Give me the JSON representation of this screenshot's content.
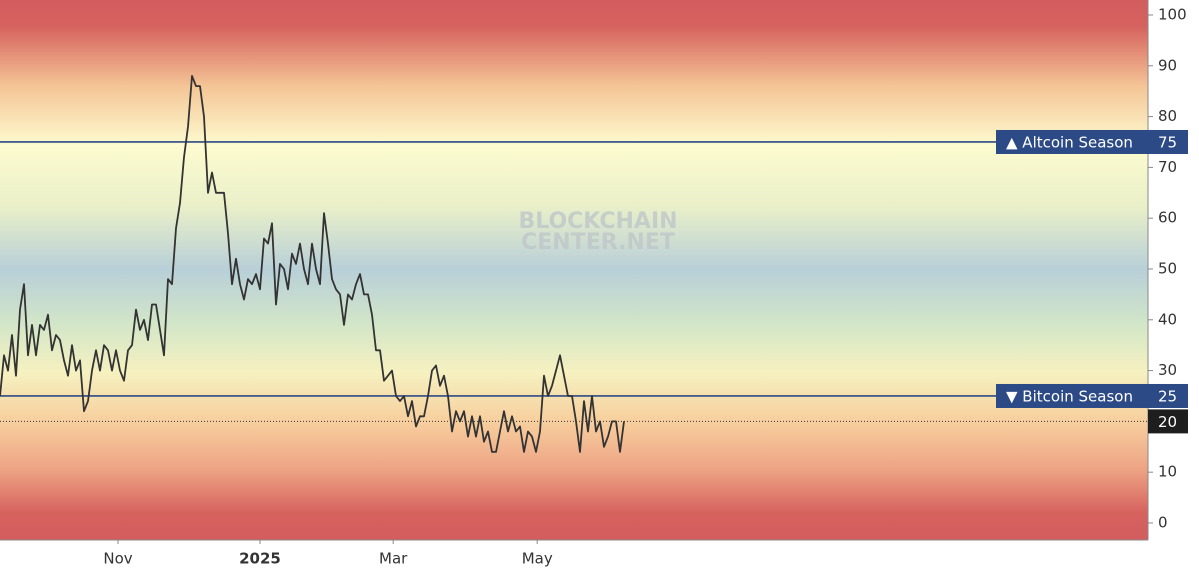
{
  "chart_data": {
    "type": "line",
    "watermark": [
      "BLOCKCHAIN",
      "CENTER.NET"
    ],
    "values": [
      25,
      33,
      30,
      37,
      29,
      42,
      47,
      33,
      39,
      33,
      39,
      38,
      41,
      34,
      37,
      36,
      32,
      29,
      35,
      30,
      32,
      22,
      24,
      30,
      34,
      30,
      35,
      34,
      30,
      34,
      30,
      28,
      34,
      35,
      42,
      38,
      40,
      36,
      43,
      43,
      38,
      33,
      48,
      47,
      58,
      63,
      72,
      78,
      88,
      86,
      86,
      80,
      65,
      69,
      65,
      65,
      65,
      57,
      47,
      52,
      47,
      44,
      48,
      47,
      49,
      46,
      56,
      55,
      59,
      43,
      51,
      50,
      46,
      53,
      51,
      55,
      50,
      47,
      55,
      50,
      47,
      61,
      55,
      48,
      46,
      45,
      39,
      45,
      44,
      47,
      49,
      45,
      45,
      41,
      34,
      34,
      28,
      29,
      30,
      25,
      24,
      25,
      21,
      24,
      19,
      21,
      21,
      25,
      30,
      31,
      27,
      29,
      25,
      18,
      22,
      20,
      22,
      17,
      21,
      17,
      21,
      16,
      18,
      14,
      14,
      18,
      22,
      18,
      21,
      18,
      19,
      14,
      18,
      17,
      14,
      18,
      29,
      25,
      27,
      30,
      33,
      29,
      25,
      25,
      20,
      14,
      24,
      18,
      25,
      18,
      20,
      15,
      17,
      20,
      20,
      14,
      20
    ],
    "color": "#333333",
    "xlim": [
      0,
      287
    ],
    "xticks": [
      {
        "value": 29.5,
        "label": "Nov"
      },
      {
        "value": 65,
        "label": "2025"
      },
      {
        "value": 98.3,
        "label": "Mar"
      },
      {
        "value": 134.3,
        "label": "May"
      }
    ],
    "ylim": [
      -3.35,
      102.95
    ],
    "yticks": [
      0,
      10,
      20,
      30,
      40,
      50,
      60,
      70,
      80,
      90,
      100
    ],
    "thresholds": [
      {
        "label": "▲ Altcoin Season",
        "value": 75,
        "color": "#2c4a86"
      },
      {
        "label": "▼ Bitcoin Season",
        "value": 25,
        "color": "#2c4a86"
      }
    ]
  }
}
